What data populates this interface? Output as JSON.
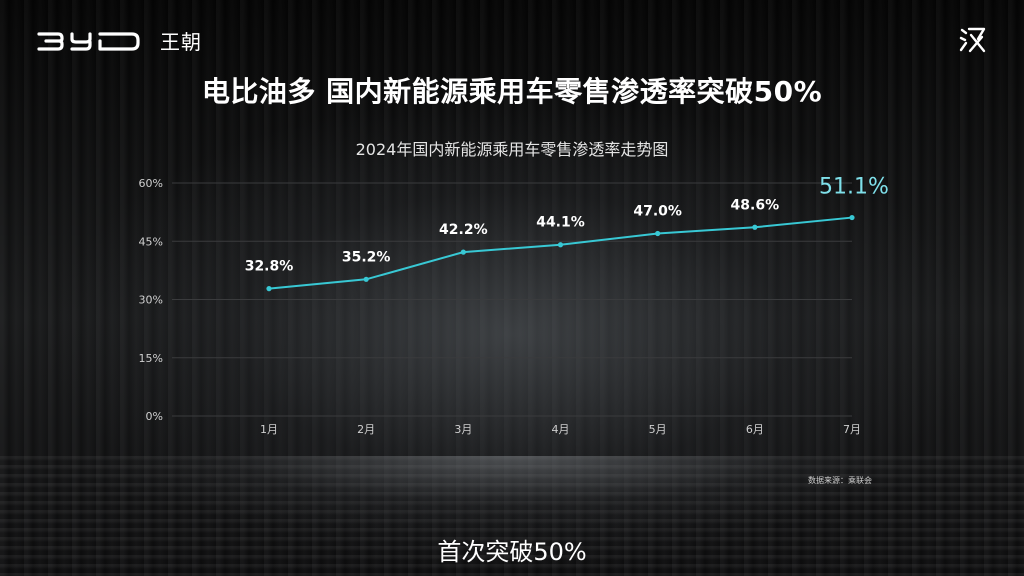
{
  "header": {
    "brand_logo": "BYD",
    "sub_brand": "王朝",
    "series_icon": "han-emblem-icon"
  },
  "headline": "电比油多 国内新能源乘用车零售渗透率突破50%",
  "caption": "首次突破50%",
  "source_note": "数据来源：乘联会",
  "colors": {
    "line": "#38c8d4",
    "highlight_label": "#7fe0ea",
    "grid": "#3a3b3d",
    "tick_text": "#cfcfcf"
  },
  "chart_data": {
    "type": "line",
    "title": "2024年国内新能源乘用车零售渗透率走势图",
    "categories": [
      "1月",
      "2月",
      "3月",
      "4月",
      "5月",
      "6月",
      "7月"
    ],
    "values": [
      32.8,
      35.2,
      42.2,
      44.1,
      47.0,
      48.6,
      51.1
    ],
    "data_labels": [
      "32.8%",
      "35.2%",
      "42.2%",
      "44.1%",
      "47.0%",
      "48.6%",
      "51.1%"
    ],
    "highlight_index": 6,
    "y_ticks": [
      "0%",
      "15%",
      "30%",
      "45%",
      "60%"
    ],
    "y_tick_values": [
      0,
      15,
      30,
      45,
      60
    ],
    "ylim": [
      0,
      60
    ],
    "grid": true,
    "xlabel": "",
    "ylabel": ""
  }
}
